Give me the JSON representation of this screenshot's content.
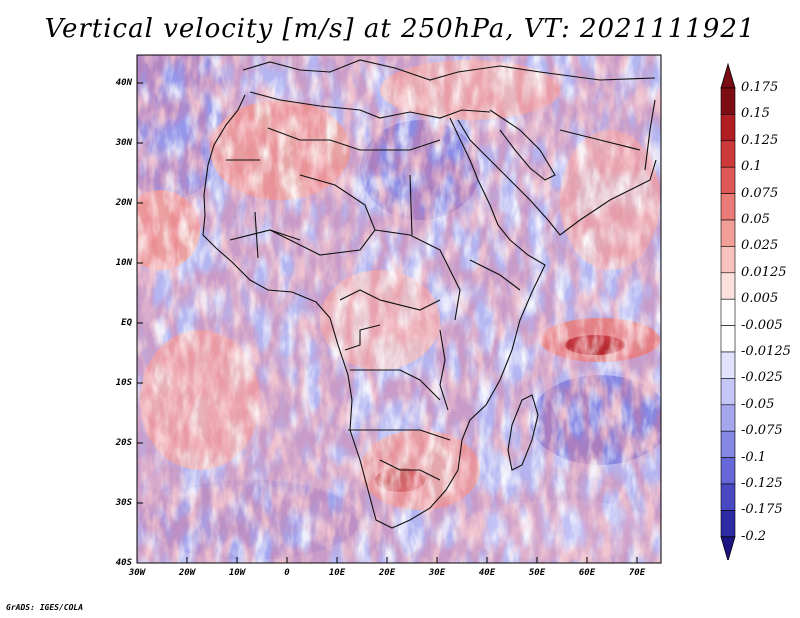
{
  "title": "Vertical velocity [m/s] at 250hPa, VT: 2021111921",
  "credit": "GrADS: IGES/COLA",
  "map": {
    "lat_labels": [
      "40N",
      "30N",
      "20N",
      "10N",
      "EQ",
      "10S",
      "20S",
      "30S",
      "40S"
    ],
    "lon_labels": [
      "30W",
      "20W",
      "10W",
      "0",
      "10E",
      "20E",
      "30E",
      "40E",
      "50E",
      "60E",
      "70E"
    ]
  },
  "colorbar": {
    "labels": [
      "0.175",
      "0.15",
      "0.125",
      "0.1",
      "0.075",
      "0.05",
      "0.025",
      "0.0125",
      "0.005",
      "-0.005",
      "-0.0125",
      "-0.025",
      "-0.05",
      "-0.075",
      "-0.1",
      "-0.125",
      "-0.175",
      "-0.2"
    ],
    "colors": [
      "#7a0c12",
      "#b01e24",
      "#cc3a3c",
      "#de5a58",
      "#ea7c77",
      "#f19e98",
      "#f7c3be",
      "#fbe0dc",
      "#ffffff",
      "#ffffff",
      "#e1e2fb",
      "#c4c6f6",
      "#a4a7ee",
      "#8587e4",
      "#6668d8",
      "#4a49c4",
      "#2e2aa6",
      "#1c1480"
    ]
  },
  "colors": {
    "ocean_blue": "#9aa0ee",
    "land_red": "#f0a49a",
    "strong_red": "#c0383a",
    "strong_blue": "#3a3ab8",
    "coast": "#111111"
  }
}
